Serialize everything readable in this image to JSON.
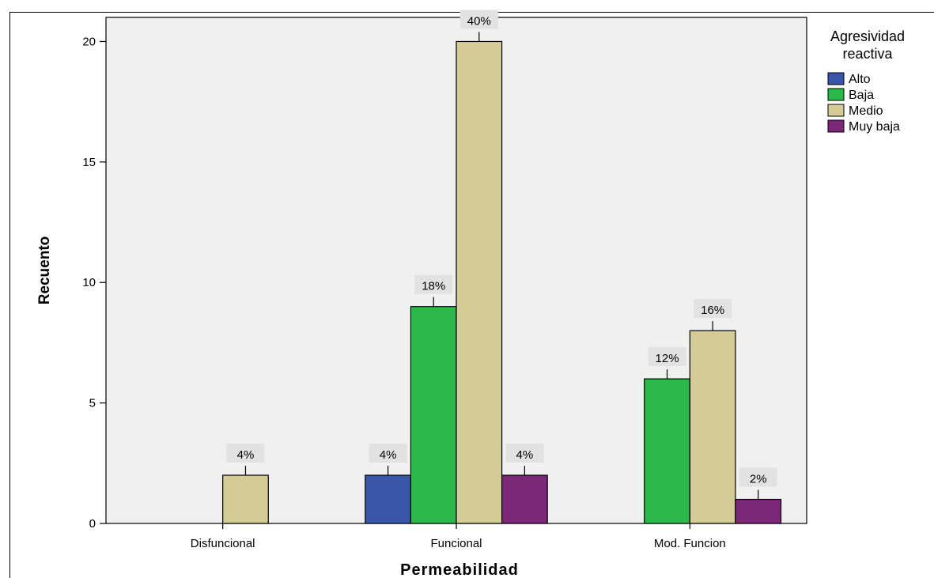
{
  "chart_data": {
    "type": "bar",
    "title": "",
    "xlabel": "Permeabilidad",
    "ylabel": "Recuento",
    "categories": [
      "Disfuncional",
      "Funcional",
      "Mod. Funcion"
    ],
    "ylim": [
      0,
      21
    ],
    "yticks": [
      0,
      5,
      10,
      15,
      20
    ],
    "grid": false,
    "legend": {
      "title": "Agresividad reactiva",
      "title_lines": [
        "Agresividad",
        "reactiva"
      ],
      "placement": "right"
    },
    "series": [
      {
        "name": "Alto",
        "color": "#3a56a8",
        "values": [
          0,
          2,
          0
        ],
        "labels": [
          "",
          "4%",
          ""
        ]
      },
      {
        "name": "Baja",
        "color": "#2db84a",
        "values": [
          0,
          9,
          6
        ],
        "labels": [
          "",
          "18%",
          "12%"
        ]
      },
      {
        "name": "Medio",
        "color": "#d4cc96",
        "values": [
          2,
          20,
          8
        ],
        "labels": [
          "4%",
          "40%",
          "16%"
        ]
      },
      {
        "name": "Muy baja",
        "color": "#7b2878",
        "values": [
          0,
          2,
          1
        ],
        "labels": [
          "",
          "4%",
          "2%"
        ]
      }
    ]
  }
}
